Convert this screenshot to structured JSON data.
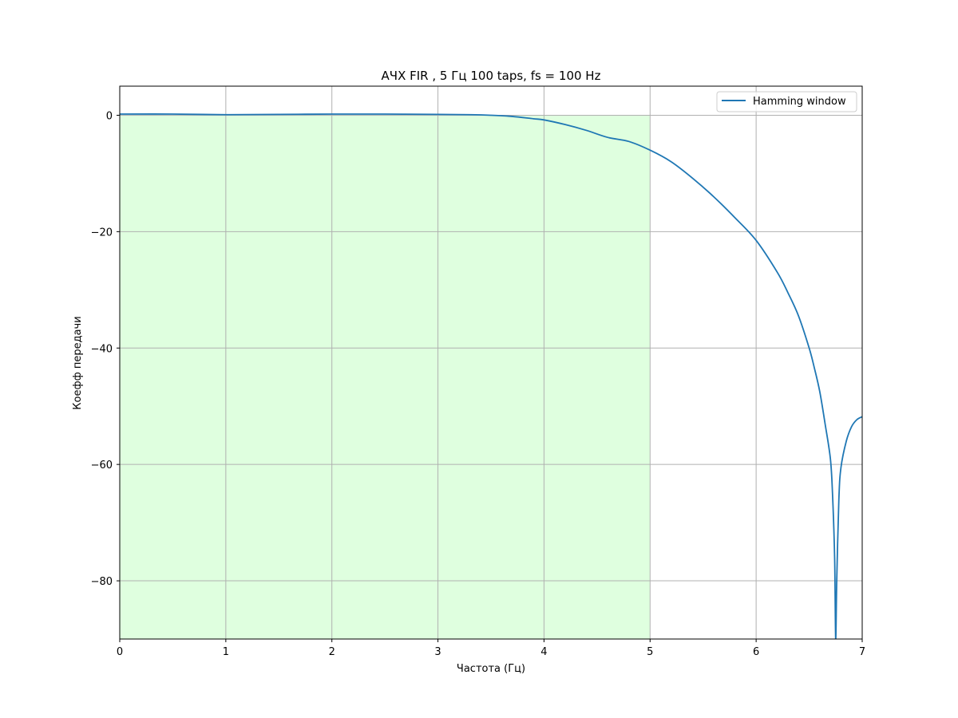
{
  "chart_data": {
    "type": "line",
    "title": "АЧХ FIR , 5  Гц 100 taps, fs = 100 Hz",
    "xlabel": "Частота (Гц)",
    "ylabel": "Коефф передачи",
    "xlim": [
      0,
      7
    ],
    "ylim": [
      -90,
      5
    ],
    "xticks": [
      0,
      1,
      2,
      3,
      4,
      5,
      6,
      7
    ],
    "yticks": [
      0,
      -20,
      -40,
      -60,
      -80
    ],
    "xtick_labels": [
      "0",
      "1",
      "2",
      "3",
      "4",
      "5",
      "6",
      "7"
    ],
    "ytick_labels": [
      "0",
      "−20",
      "−40",
      "−60",
      "−80"
    ],
    "grid": true,
    "legend_position": "top-right",
    "passband_shade": {
      "x_from": 0,
      "x_to": 5,
      "y_from": -90,
      "y_to": 0,
      "color": "#dfffdf"
    },
    "series": [
      {
        "name": "Hamming window",
        "color": "#1f77b4",
        "x": [
          0,
          0.5,
          1.0,
          1.5,
          2.0,
          2.5,
          3.0,
          3.3,
          3.5,
          3.7,
          3.9,
          4.0,
          4.2,
          4.4,
          4.6,
          4.8,
          5.0,
          5.2,
          5.4,
          5.6,
          5.8,
          6.0,
          6.2,
          6.3,
          6.4,
          6.5,
          6.55,
          6.6,
          6.65,
          6.7,
          6.72,
          6.74,
          6.75,
          6.76,
          6.78,
          6.8,
          6.85,
          6.9,
          6.95,
          7.0
        ],
        "y": [
          0.2,
          0.2,
          0.1,
          0.15,
          0.2,
          0.2,
          0.15,
          0.1,
          0.0,
          -0.2,
          -0.6,
          -0.8,
          -1.6,
          -2.6,
          -3.8,
          -4.5,
          -6.0,
          -8.0,
          -10.8,
          -14.0,
          -17.6,
          -21.5,
          -27.0,
          -30.5,
          -34.5,
          -40.0,
          -43.5,
          -47.5,
          -53.0,
          -59.0,
          -65.0,
          -76.0,
          -90.0,
          -80.0,
          -66.0,
          -60.5,
          -56.0,
          -53.5,
          -52.3,
          -51.8
        ]
      }
    ]
  }
}
